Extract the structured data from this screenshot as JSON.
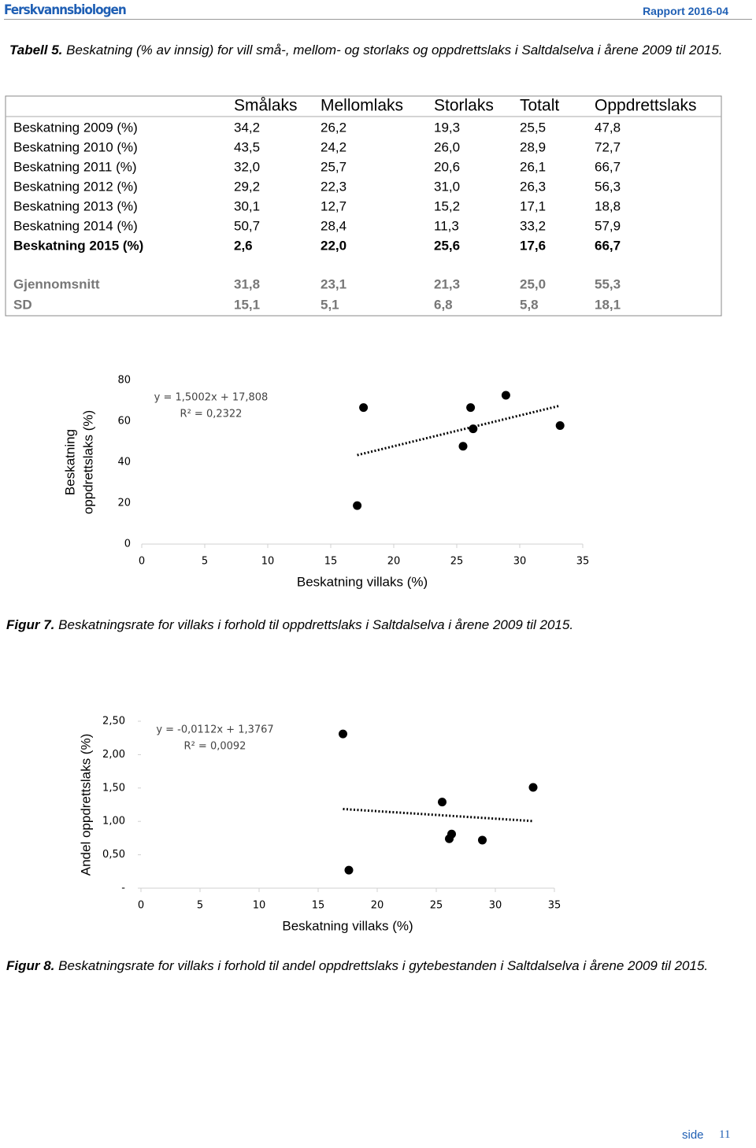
{
  "header": {
    "left": "Ferskvannsbiologen",
    "right": "Rapport 2016-04"
  },
  "table_caption": {
    "label": "Tabell 5.",
    "text": "Beskatning (% av innsig) for vill små-, mellom- og storlaks og oppdrettslaks i Saltdalselva i årene 2009 til 2015."
  },
  "table": {
    "columns": [
      "Smålaks",
      "Mellomlaks",
      "Storlaks",
      "Totalt",
      "Oppdrettslaks"
    ],
    "rows": [
      {
        "label": "Beskatning 2009 (%)",
        "values": [
          "34,2",
          "26,2",
          "19,3",
          "25,5",
          "47,8"
        ]
      },
      {
        "label": "Beskatning 2010 (%)",
        "values": [
          "43,5",
          "24,2",
          "26,0",
          "28,9",
          "72,7"
        ]
      },
      {
        "label": "Beskatning 2011 (%)",
        "values": [
          "32,0",
          "25,7",
          "20,6",
          "26,1",
          "66,7"
        ]
      },
      {
        "label": "Beskatning 2012 (%)",
        "values": [
          "29,2",
          "22,3",
          "31,0",
          "26,3",
          "56,3"
        ]
      },
      {
        "label": "Beskatning 2013 (%)",
        "values": [
          "30,1",
          "12,7",
          "15,2",
          "17,1",
          "18,8"
        ]
      },
      {
        "label": "Beskatning 2014 (%)",
        "values": [
          "50,7",
          "28,4",
          "11,3",
          "33,2",
          "57,9"
        ]
      },
      {
        "label": "Beskatning 2015 (%)",
        "values": [
          "2,6",
          "22,0",
          "25,6",
          "17,6",
          "66,7"
        ],
        "bold": true
      }
    ],
    "summary_rows": [
      {
        "label": "Gjennomsnitt",
        "values": [
          "31,8",
          "23,1",
          "21,3",
          "25,0",
          "55,3"
        ]
      },
      {
        "label": "SD",
        "values": [
          "15,1",
          "5,1",
          "6,8",
          "5,8",
          "18,1"
        ]
      }
    ]
  },
  "chart_data": [
    {
      "type": "scatter",
      "xlabel": "Beskatning villaks (%)",
      "ylabel": [
        "Beskatning",
        "oppdrettslaks (%)"
      ],
      "x": [
        25.5,
        28.9,
        26.1,
        26.3,
        17.1,
        33.2,
        17.6
      ],
      "y": [
        47.8,
        72.7,
        66.7,
        56.3,
        18.8,
        57.9,
        66.7
      ],
      "color": "#000000",
      "xlim": [
        0,
        35
      ],
      "xticks": [
        0,
        5,
        10,
        15,
        20,
        25,
        30,
        35
      ],
      "ylim": [
        0,
        80
      ],
      "yticks": [
        0,
        20,
        40,
        60,
        80
      ],
      "trendline": {
        "equation": "y = 1,5002x + 17,808",
        "r2": "R² = 0,2322",
        "slope": 1.5002,
        "intercept": 17.808
      }
    },
    {
      "type": "scatter",
      "xlabel": "Beskatning villaks (%)",
      "ylabel": [
        "Andel oppdrettslaks (%)"
      ],
      "x": [
        25.5,
        28.9,
        26.1,
        26.3,
        17.1,
        33.2,
        17.6
      ],
      "y": [
        1.29,
        0.72,
        0.74,
        0.81,
        2.31,
        1.51,
        0.27
      ],
      "color": "#000000",
      "xlim": [
        0,
        35
      ],
      "xticks": [
        0,
        5,
        10,
        15,
        20,
        25,
        30,
        35
      ],
      "ylim": [
        0,
        2.5
      ],
      "yticks": [
        {
          "value": 0,
          "label": "-"
        },
        {
          "value": 0.5,
          "label": "0,50"
        },
        {
          "value": 1,
          "label": "1,00"
        },
        {
          "value": 1.5,
          "label": "1,50"
        },
        {
          "value": 2,
          "label": "2,00"
        },
        {
          "value": 2.5,
          "label": "2,50"
        }
      ],
      "trendline": {
        "equation": "y = -0,0112x + 1,3767",
        "r2": "R² = 0,0092",
        "slope": -0.0112,
        "intercept": 1.3767
      }
    }
  ],
  "figure_captions": [
    {
      "label": "Figur 7.",
      "text": "Beskatningsrate for villaks i forhold til oppdrettslaks i Saltdalselva i årene 2009 til 2015."
    },
    {
      "label": "Figur 8.",
      "text": "Beskatningsrate for villaks i forhold til andel oppdrettslaks i gytebestanden i Saltdalselva i årene 2009 til 2015."
    }
  ],
  "footer": {
    "label": "side",
    "page": "11"
  }
}
